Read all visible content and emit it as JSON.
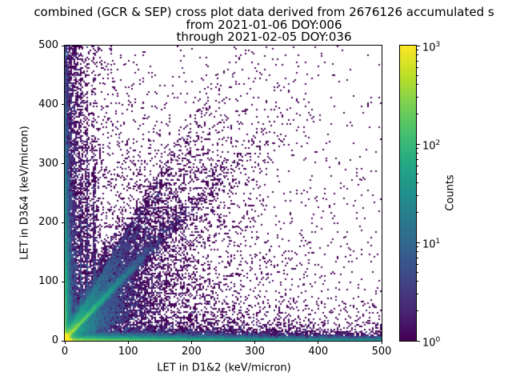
{
  "chart_data": {
    "type": "heatmap",
    "title_lines": [
      "combined (GCR & SEP) cross plot data derived from 2676126 accumulated s",
      "from 2021-01-06 DOY:006",
      "through 2021-02-05 DOY:036"
    ],
    "xlabel": "LET in D1&2 (keV/micron)",
    "ylabel": "LET in D3&4 (keV/micron)",
    "xlim": [
      0,
      500
    ],
    "ylim": [
      0,
      500
    ],
    "xticks": [
      0,
      100,
      200,
      300,
      400,
      500
    ],
    "yticks": [
      0,
      100,
      200,
      300,
      400,
      500
    ],
    "grid": false,
    "legend": "none",
    "colorbar": {
      "label": "Counts",
      "scale": "log",
      "tick_values": [
        1,
        10,
        100,
        1000
      ],
      "tick_labels": [
        "10^0",
        "10^1",
        "10^2",
        "10^3"
      ],
      "minor_ticks_per_decade": [
        2,
        3,
        4,
        5,
        6,
        7,
        8,
        9
      ],
      "cmap": "viridis",
      "colors": [
        "#440154",
        "#482475",
        "#414487",
        "#355f8d",
        "#2a788e",
        "#21918c",
        "#22a884",
        "#44bf70",
        "#7ad151",
        "#bddf26",
        "#fde725"
      ]
    },
    "distribution": {
      "description": "2D histogram of LET coincidence events: saturated core at origin, bright diagonal ion track band of slope ~1.15 out to ~(130,150), diffuse fan in lower-left, dense bands hugging both axes, faint vertical streaks at low D1&2 LET, sparse cluster along diagonal near (230,260), isolated single-count bins elsewhere",
      "seed": 1337,
      "bins": [
        200,
        200
      ],
      "log_color_max": 1000,
      "components": [
        {
          "name": "origin-core",
          "type": "exp2d",
          "n": 130000,
          "sx": 2.2,
          "sy": 2.2
        },
        {
          "name": "bottom-band",
          "type": "exp2d",
          "n": 26000,
          "sx": 120,
          "sy": 3
        },
        {
          "name": "bottom-line",
          "type": "bandx",
          "n": 7000,
          "yscale": 2.2
        },
        {
          "name": "bottom-speckle",
          "type": "exp2d",
          "n": 5000,
          "sx": 260,
          "sy": 14
        },
        {
          "name": "left-band",
          "type": "exp2d",
          "n": 20000,
          "sx": 3,
          "sy": 110
        },
        {
          "name": "left-speckle",
          "type": "bandy",
          "n": 2600,
          "xscale": 15
        },
        {
          "name": "diag-streak",
          "type": "diag",
          "n": 16000,
          "scale": 38,
          "slope": 1.15,
          "j0": 0.6,
          "jg": 0.035
        },
        {
          "name": "diag-fan",
          "type": "fan",
          "n": 22000,
          "xscale": 48,
          "rmin": 0.3,
          "rspan": 1.6,
          "yoff": 5
        },
        {
          "name": "ray-1",
          "type": "ray",
          "n": 1500,
          "scale": 30,
          "slope": 1.35,
          "j": 2
        },
        {
          "name": "ray-2",
          "type": "ray",
          "n": 1300,
          "scale": 28,
          "slope": 1.65,
          "j": 2.5
        },
        {
          "name": "ray-3",
          "type": "ray",
          "n": 1100,
          "scale": 24,
          "slope": 2.3,
          "j": 3
        },
        {
          "name": "vertical-streaks",
          "type": "streaks",
          "n": 3600,
          "xs": [
            7,
            12,
            18,
            26,
            36,
            47
          ],
          "xj": 1.2,
          "yscale": 130
        },
        {
          "name": "mid-diag-cluster",
          "type": "cluster",
          "n": 450,
          "tmean": 230,
          "tsig": 60,
          "slope": 1.12,
          "xsig": 36,
          "ysig": 42
        },
        {
          "name": "far-scatter",
          "type": "exp2d",
          "n": 5000,
          "sx": 150,
          "sy": 150
        },
        {
          "name": "uniform-floor",
          "type": "uniform2",
          "n": 400
        }
      ]
    }
  }
}
